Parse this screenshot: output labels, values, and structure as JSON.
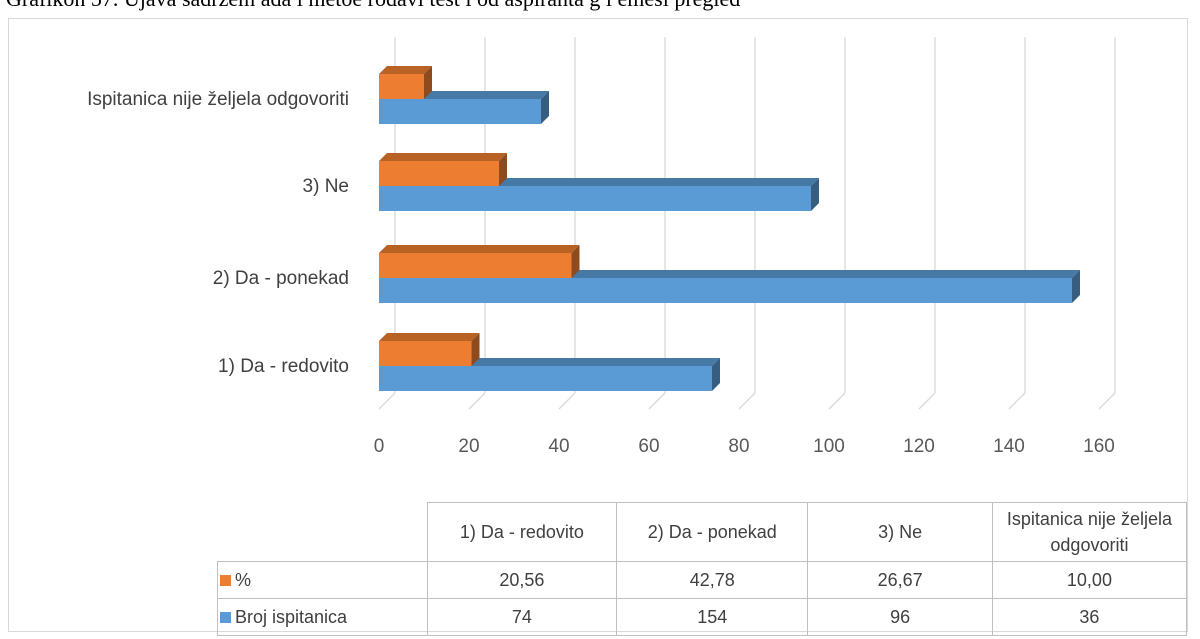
{
  "page": {
    "title_partial": "Grafikon 57. Ujava sadržem ada i metoe rodavi test i od aspiranta g i emesi pregled"
  },
  "chart_data": {
    "type": "bar",
    "orientation": "horizontal",
    "style": "3d-clustered",
    "categories": [
      "1) Da - redovito",
      "2) Da - ponekad",
      "3) Ne",
      "Ispitanica nije željela odgovoriti"
    ],
    "series": [
      {
        "name": "%",
        "color": "#ed7d31",
        "values": [
          20.56,
          42.78,
          26.67,
          10.0
        ],
        "display": [
          "20,56",
          "42,78",
          "26,67",
          "10,00"
        ]
      },
      {
        "name": "Broj ispitanica",
        "color": "#5b9bd5",
        "values": [
          74,
          154,
          96,
          36
        ],
        "display": [
          "74",
          "154",
          "96",
          "36"
        ]
      }
    ],
    "xlim": [
      0,
      160
    ],
    "xticks": [
      0,
      20,
      40,
      60,
      80,
      100,
      120,
      140,
      160
    ],
    "grid": true,
    "legend": "data-table",
    "data_table": true
  }
}
